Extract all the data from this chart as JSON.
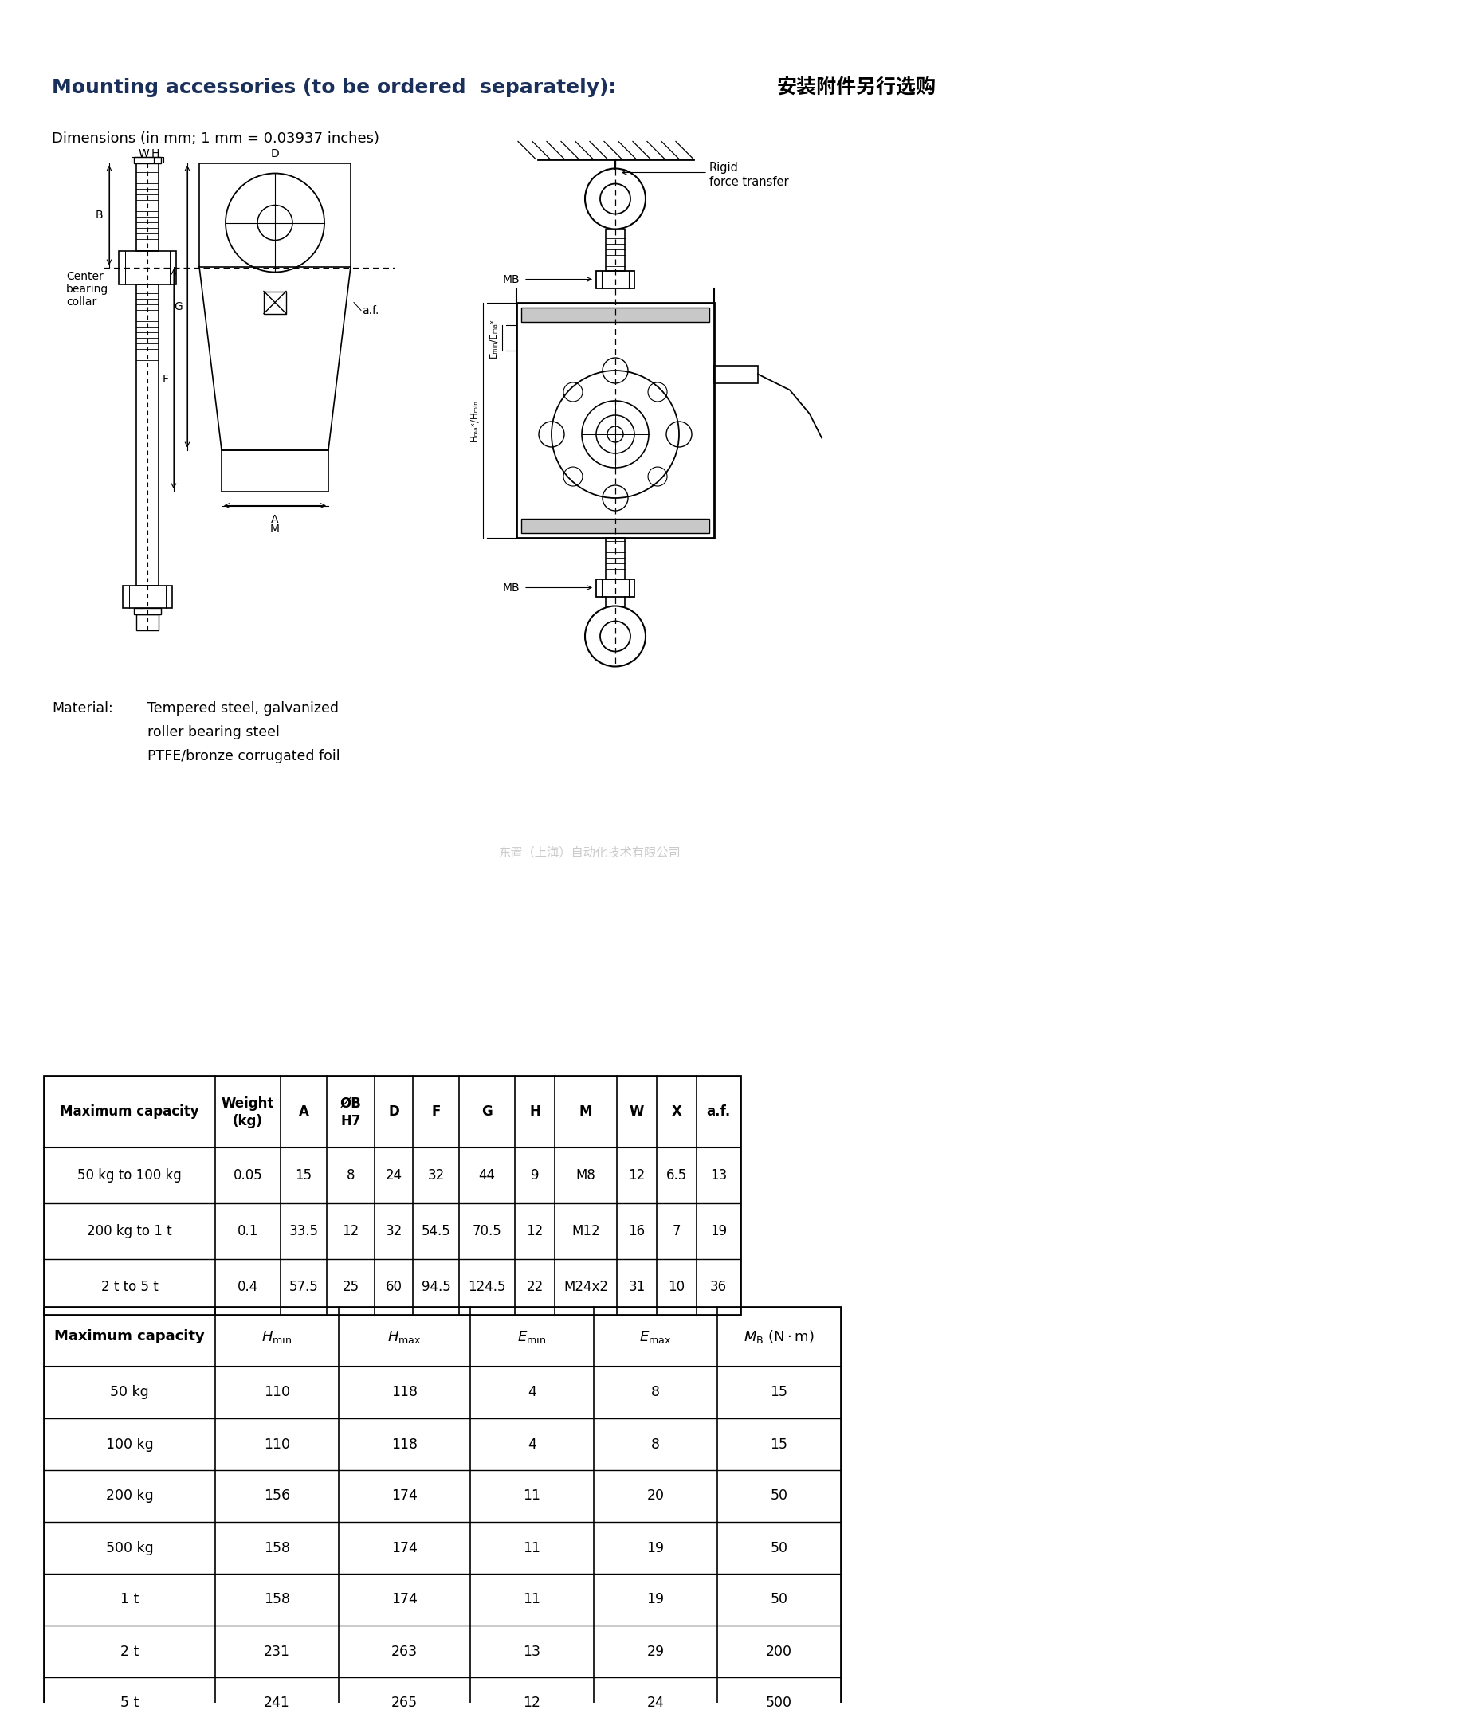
{
  "title_en": "Mounting accessories (to be ordered  separately):",
  "title_cn": "安装附件另行选购",
  "dim_note": "Dimensions (in mm; 1 mm = 0.03937 inches)",
  "material_label": "Material:",
  "material_lines": [
    "Tempered steel, galvanized",
    "roller bearing steel",
    "PTFE/bronze corrugated foil"
  ],
  "watermark": "东置（上海）自动化技术有限公司",
  "rigid_force_line1": "Rigid",
  "rigid_force_line2": "force transfer",
  "mb_label": "MB",
  "bg_color": "#ffffff",
  "text_color": "#000000",
  "title_color_en": "#1a2f5a",
  "title_color_cn": "#000000",
  "watermark_color": "#b0b0b0",
  "table1_headers_row1": [
    "Maximum capacity",
    "Weight",
    "A",
    "ØB",
    "D",
    "F",
    "G",
    "H",
    "M",
    "W",
    "X",
    "a.f."
  ],
  "table1_headers_row2": [
    "",
    "(kg)",
    "",
    "H7",
    "",
    "",
    "",
    "",
    "",
    "",
    "",
    ""
  ],
  "table1_rows": [
    [
      "50 kg to 100 kg",
      "0.05",
      "15",
      "8",
      "24",
      "32",
      "44",
      "9",
      "M8",
      "12",
      "6.5",
      "13"
    ],
    [
      "200 kg to 1 t",
      "0.1",
      "33.5",
      "12",
      "32",
      "54.5",
      "70.5",
      "12",
      "M12",
      "16",
      "7",
      "19"
    ],
    [
      "2 t to 5 t",
      "0.4",
      "57.5",
      "25",
      "60",
      "94.5",
      "124.5",
      "22",
      "M24x2",
      "31",
      "10",
      "36"
    ]
  ],
  "table2_headers": [
    "Maximum capacity",
    "H_min",
    "H_max",
    "E_min",
    "E_max",
    "MB_Nm"
  ],
  "table2_rows": [
    [
      "50 kg",
      "110",
      "118",
      "4",
      "8",
      "15"
    ],
    [
      "100 kg",
      "110",
      "118",
      "4",
      "8",
      "15"
    ],
    [
      "200 kg",
      "156",
      "174",
      "11",
      "20",
      "50"
    ],
    [
      "500 kg",
      "158",
      "174",
      "11",
      "19",
      "50"
    ],
    [
      "1 t",
      "158",
      "174",
      "11",
      "19",
      "50"
    ],
    [
      "2 t",
      "231",
      "263",
      "13",
      "29",
      "200"
    ],
    [
      "5 t",
      "241",
      "265",
      "12",
      "24",
      "500"
    ]
  ]
}
